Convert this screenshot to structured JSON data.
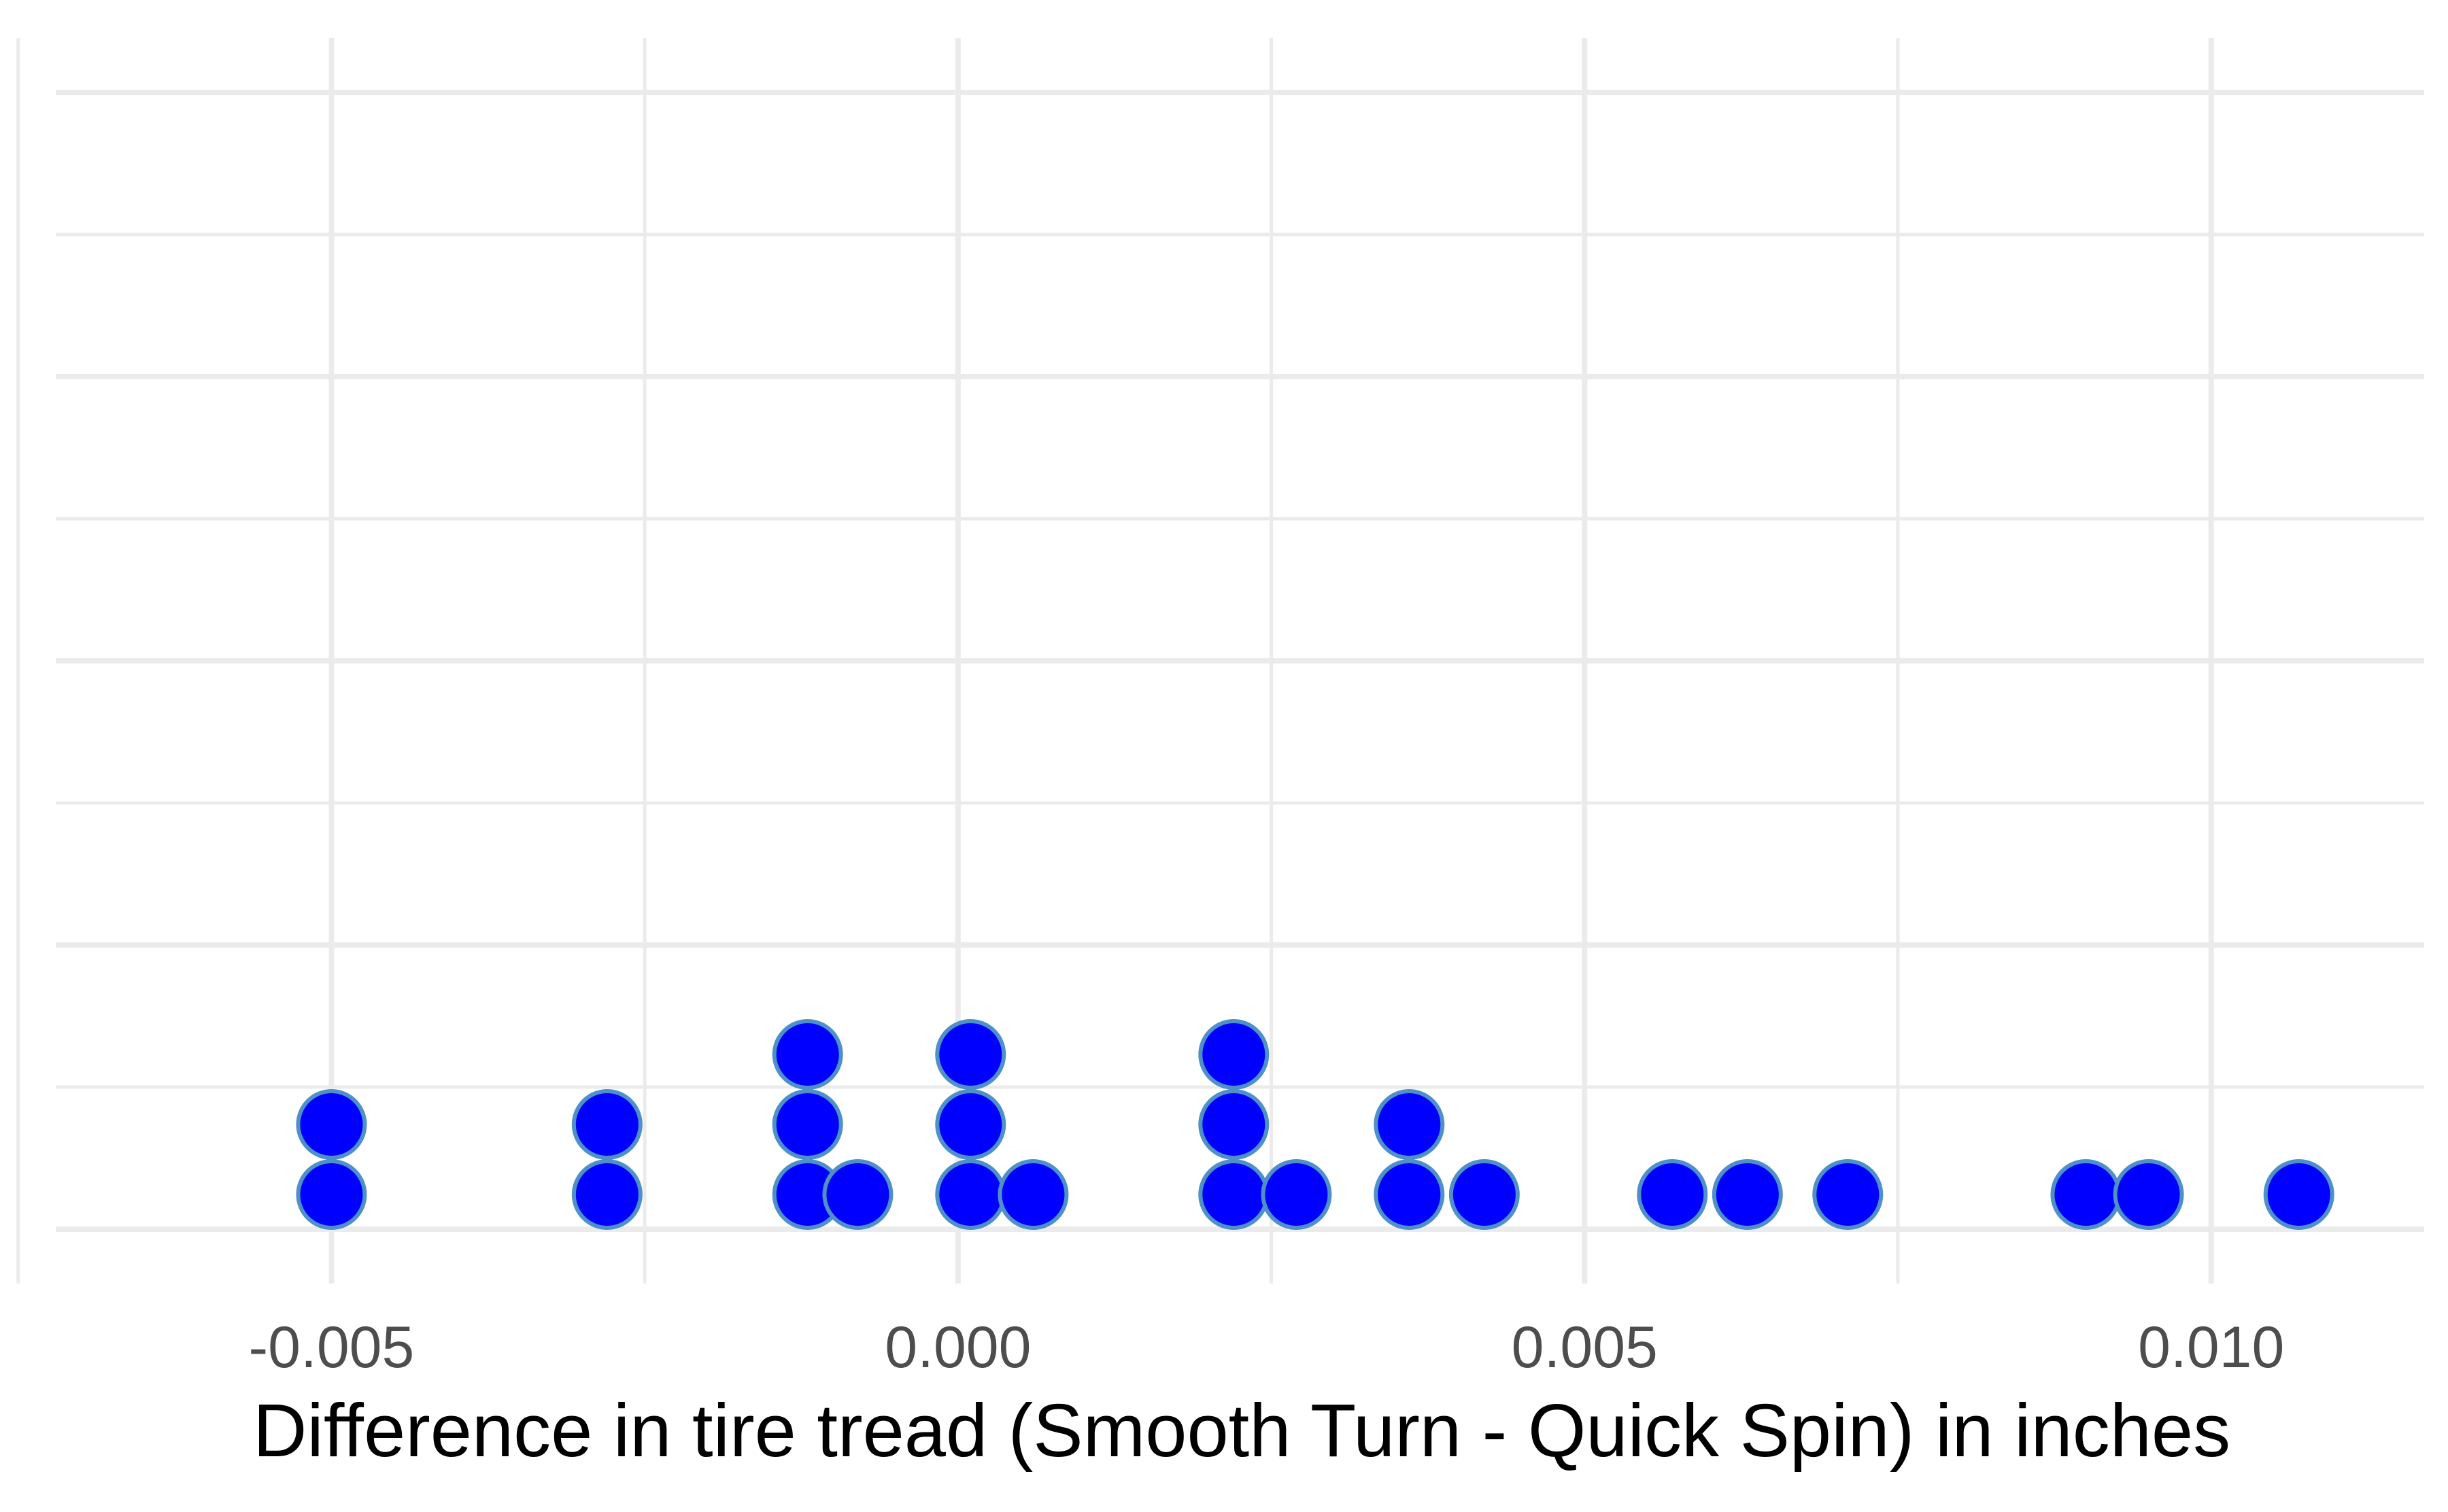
{
  "chart_data": {
    "type": "dotplot",
    "title": "",
    "xlabel": "Difference in tire tread (Smooth Turn - Quick Spin) in inches",
    "ylabel": "",
    "xlim": [
      -0.0072,
      0.0117
    ],
    "ylim": [
      0,
      16
    ],
    "x_ticks": [
      -0.005,
      0.0,
      0.005,
      0.01
    ],
    "x_tick_labels": [
      "-0.005",
      "0.000",
      "0.005",
      "0.010"
    ],
    "x_minor_ticks": [
      -0.0075,
      -0.0025,
      0.0025,
      0.0075
    ],
    "y_grid": [
      0,
      2,
      4,
      6,
      8,
      10,
      12,
      14,
      16
    ],
    "grid": true,
    "dot_fill_color": "#0000ff",
    "dot_stroke_color": "#4e90c8",
    "points": [
      {
        "x": -0.005,
        "count": 2
      },
      {
        "x": -0.0028,
        "count": 2
      },
      {
        "x": -0.0012,
        "count": 3
      },
      {
        "x": -0.0008,
        "count": 1
      },
      {
        "x": 0.0001,
        "count": 3
      },
      {
        "x": 0.0006,
        "count": 1
      },
      {
        "x": 0.0022,
        "count": 3
      },
      {
        "x": 0.0027,
        "count": 1
      },
      {
        "x": 0.0036,
        "count": 2
      },
      {
        "x": 0.0042,
        "count": 1
      },
      {
        "x": 0.0057,
        "count": 1
      },
      {
        "x": 0.0063,
        "count": 1
      },
      {
        "x": 0.0071,
        "count": 1
      },
      {
        "x": 0.009,
        "count": 1
      },
      {
        "x": 0.0095,
        "count": 1
      },
      {
        "x": 0.0107,
        "count": 1
      }
    ]
  }
}
